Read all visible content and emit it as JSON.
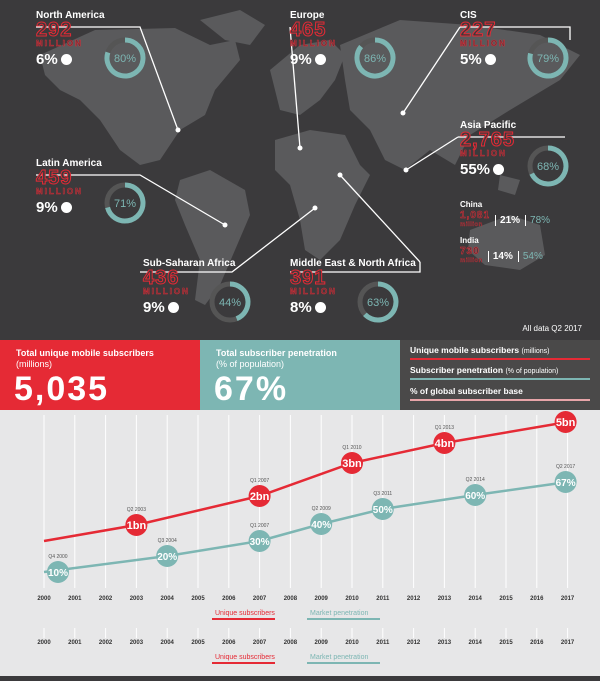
{
  "regions": [
    {
      "id": "north-america",
      "name": "North America",
      "subscribers": "292",
      "unit": "MILLION",
      "share": "6%",
      "penetration": "80%",
      "pen_value": 80
    },
    {
      "id": "europe",
      "name": "Europe",
      "subscribers": "465",
      "unit": "MILLION",
      "share": "9%",
      "penetration": "86%",
      "pen_value": 86
    },
    {
      "id": "cis",
      "name": "CIS",
      "subscribers": "227",
      "unit": "MILLION",
      "share": "5%",
      "penetration": "79%",
      "pen_value": 79
    },
    {
      "id": "asia-pacific",
      "name": "Asia Pacific",
      "subscribers": "2,765",
      "unit": "MILLION",
      "share": "55%",
      "penetration": "68%",
      "pen_value": 68
    },
    {
      "id": "latin-america",
      "name": "Latin America",
      "subscribers": "459",
      "unit": "MILLION",
      "share": "9%",
      "penetration": "71%",
      "pen_value": 71
    },
    {
      "id": "sub-saharan-africa",
      "name": "Sub-Saharan Africa",
      "subscribers": "436",
      "unit": "MILLION",
      "share": "9%",
      "penetration": "44%",
      "pen_value": 44
    },
    {
      "id": "mena",
      "name": "Middle East & North Africa",
      "subscribers": "391",
      "unit": "MILLION",
      "share": "8%",
      "penetration": "63%",
      "pen_value": 63
    }
  ],
  "countries": [
    {
      "name": "China",
      "subscribers": "1,081",
      "unit": "million",
      "share": "21%",
      "penetration": "78%"
    },
    {
      "name": "India",
      "subscribers": "730",
      "unit": "million",
      "share": "14%",
      "penetration": "54%"
    }
  ],
  "note": "All data Q2 2017",
  "banner": {
    "total_title": "Total unique mobile subscribers",
    "total_sub": "(millions)",
    "total_value": "5,035",
    "pen_title": "Total subscriber penetration",
    "pen_sub": "(% of population)",
    "pen_value": "67%",
    "legend1": "Unique mobile subscribers",
    "legend1_sub": "(millions)",
    "legend2": "Subscriber penetration",
    "legend2_sub": "(% of population)",
    "legend3": "% of global subscriber base"
  },
  "colors": {
    "red": "#e52a35",
    "teal": "#7db6b3",
    "dark": "#3b3a3c"
  },
  "chart_data": {
    "type": "line",
    "x": [
      "2000",
      "2001",
      "2002",
      "2003",
      "2004",
      "2005",
      "2006",
      "2007",
      "2008",
      "2009",
      "2010",
      "2011",
      "2012",
      "2013",
      "2014",
      "2015",
      "2016",
      "2017"
    ],
    "series": [
      {
        "name": "Unique subscribers",
        "milestones": [
          {
            "x": "2003",
            "label": "1bn",
            "quarter": "Q2 2003"
          },
          {
            "x": "2007",
            "label": "2bn",
            "quarter": "Q1 2007"
          },
          {
            "x": "2010",
            "label": "3bn",
            "quarter": "Q1 2010"
          },
          {
            "x": "2013",
            "label": "4bn",
            "quarter": "Q1 2013"
          },
          {
            "x": "2017",
            "label": "5bn",
            "quarter": "Q2 2017"
          }
        ]
      },
      {
        "name": "Market penetration",
        "milestones": [
          {
            "x": "2000",
            "label": "10%",
            "quarter": "Q4 2000"
          },
          {
            "x": "2004",
            "label": "20%",
            "quarter": "Q3 2004"
          },
          {
            "x": "2007",
            "label": "30%",
            "quarter": "Q1 2007"
          },
          {
            "x": "2009",
            "label": "40%",
            "quarter": "Q2 2009"
          },
          {
            "x": "2011",
            "label": "50%",
            "quarter": "Q3 2011"
          },
          {
            "x": "2014",
            "label": "60%",
            "quarter": "Q2 2014"
          },
          {
            "x": "2017",
            "label": "67%",
            "quarter": "Q2 2017"
          }
        ]
      }
    ],
    "legend": [
      "Unique subscribers",
      "Market penetration"
    ]
  }
}
